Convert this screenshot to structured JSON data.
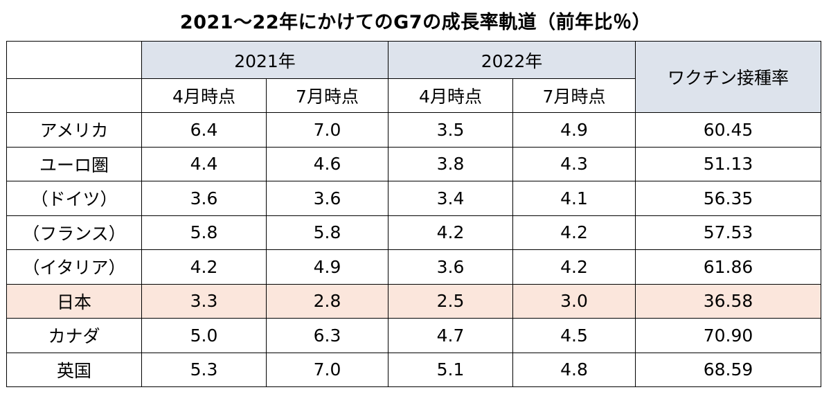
{
  "title": "2021〜22年にかけてのG7の成長率軌道（前年比％）",
  "header": {
    "year_2021": "2021年",
    "year_2022": "2022年",
    "vaccine": "ワクチン接種率",
    "sub_april": "4月時点",
    "sub_july": "7月時点"
  },
  "rows": [
    {
      "name": "アメリカ",
      "v": [
        "6.4",
        "7.0",
        "3.5",
        "4.9",
        "60.45"
      ]
    },
    {
      "name": "ユーロ圏",
      "v": [
        "4.4",
        "4.6",
        "3.8",
        "4.3",
        "51.13"
      ]
    },
    {
      "name": "（ドイツ）",
      "v": [
        "3.6",
        "3.6",
        "3.4",
        "4.1",
        "56.35"
      ]
    },
    {
      "name": "（フランス）",
      "v": [
        "5.8",
        "5.8",
        "4.2",
        "4.2",
        "57.53"
      ]
    },
    {
      "name": "（イタリア）",
      "v": [
        "4.2",
        "4.9",
        "3.6",
        "4.2",
        "61.86"
      ]
    },
    {
      "name": "日本",
      "v": [
        "3.3",
        "2.8",
        "2.5",
        "3.0",
        "36.58"
      ]
    },
    {
      "name": "カナダ",
      "v": [
        "5.0",
        "6.3",
        "4.7",
        "4.5",
        "70.90"
      ]
    },
    {
      "name": "英国",
      "v": [
        "5.3",
        "7.0",
        "5.1",
        "4.8",
        "68.59"
      ]
    }
  ],
  "colors": {
    "header_bg": "#dde3ec",
    "highlight_bg": "#fbe6dc",
    "border": "#000000"
  }
}
